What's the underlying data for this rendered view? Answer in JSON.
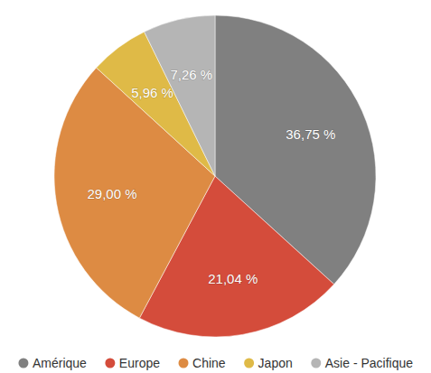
{
  "chart_data": {
    "type": "pie",
    "categories": [
      "Amérique",
      "Europe",
      "Chine",
      "Japon",
      "Asie - Pacifique"
    ],
    "values": [
      36.75,
      21.04,
      29.0,
      5.96,
      7.26
    ],
    "value_labels": [
      "36,75 %",
      "21,04 %",
      "29,00 %",
      "5,96 %",
      "7,26 %"
    ],
    "colors": [
      "#808080",
      "#d44c3b",
      "#dd8b43",
      "#dfba47",
      "#b5b5b5"
    ],
    "data_labels": true,
    "legend": "bottom"
  }
}
